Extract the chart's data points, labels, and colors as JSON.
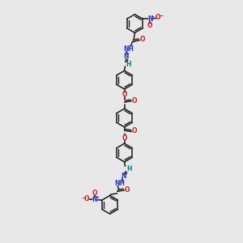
{
  "bg_color": "#e8e8e8",
  "bond_color": "#1a1a1a",
  "bond_width": 1.1,
  "N_color": "#3333cc",
  "O_color": "#cc2222",
  "teal_color": "#008080",
  "figsize": [
    3.0,
    3.0
  ],
  "dpi": 100,
  "xlim": [
    0,
    10
  ],
  "ylim": [
    0,
    10
  ]
}
